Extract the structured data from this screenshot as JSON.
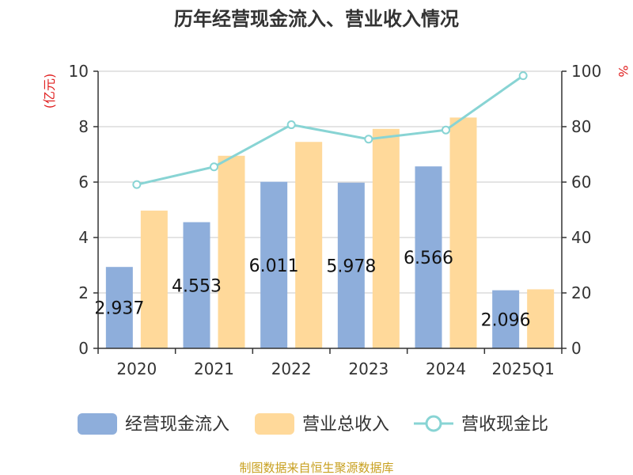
{
  "chart_data": {
    "type": "bar",
    "title": "历年经营现金流入、营业收入情况",
    "categories": [
      "2020",
      "2021",
      "2022",
      "2023",
      "2024",
      "2025Q1"
    ],
    "y_left": {
      "unit": "(亿元)",
      "range": [
        0,
        10
      ],
      "ticks": [
        "0",
        "2",
        "4",
        "6",
        "8",
        "10"
      ]
    },
    "y_right": {
      "unit": "%",
      "range": [
        0,
        100
      ],
      "ticks": [
        "0",
        "20",
        "40",
        "60",
        "80",
        "100"
      ]
    },
    "series": [
      {
        "name": "经营现金流入",
        "type": "bar",
        "axis": "left",
        "color": "#8eaedb",
        "values": [
          2.937,
          4.553,
          6.011,
          5.978,
          6.566,
          2.096
        ],
        "labels": [
          "2.937",
          "4.553",
          "6.011",
          "5.978",
          "6.566",
          "2.096"
        ]
      },
      {
        "name": "营业总收入",
        "type": "bar",
        "axis": "left",
        "color": "#ffd99a",
        "values": [
          4.97,
          6.95,
          7.45,
          7.92,
          8.33,
          2.13
        ]
      },
      {
        "name": "营收现金比",
        "type": "line",
        "axis": "right",
        "color": "#88d4d4",
        "values": [
          59.1,
          65.5,
          80.7,
          75.5,
          78.8,
          98.4
        ]
      }
    ],
    "grid": true,
    "legend_position": "bottom"
  },
  "source_text": "制图数据来自恒生聚源数据库"
}
